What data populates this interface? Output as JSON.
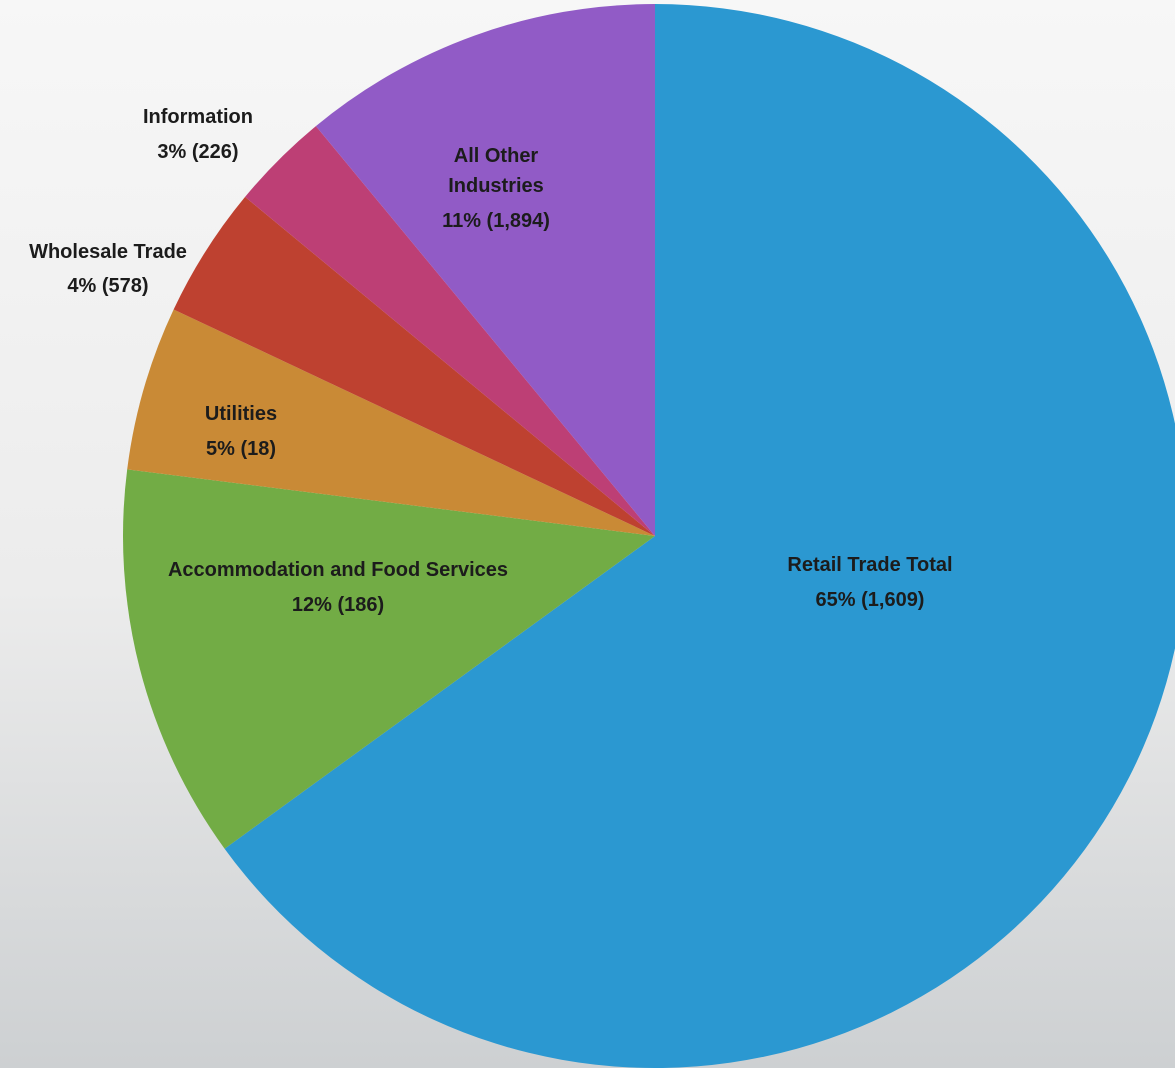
{
  "chart_data": {
    "type": "pie",
    "start_angle_deg": 0,
    "direction": "clockwise",
    "slices": [
      {
        "name": "Retail Trade Total",
        "percent": 65,
        "value": 1609,
        "percent_label": "65%",
        "value_label": "(1,609)",
        "color": "#2b98d1",
        "key": "retail-trade-total"
      },
      {
        "name": "Accommodation and Food Services",
        "percent": 12,
        "value": 186,
        "percent_label": "12%",
        "value_label": "(186)",
        "color": "#72ac45",
        "key": "accommodation-and-food-services"
      },
      {
        "name": "Utilities",
        "percent": 5,
        "value": 18,
        "percent_label": "5%",
        "value_label": "(18)",
        "color": "#c98a36",
        "key": "utilities"
      },
      {
        "name": "Wholesale Trade",
        "percent": 4,
        "value": 578,
        "percent_label": "4%",
        "value_label": "(578)",
        "color": "#be4130",
        "key": "wholesale-trade"
      },
      {
        "name": "Information",
        "percent": 3,
        "value": 226,
        "percent_label": "3%",
        "value_label": "(226)",
        "color": "#bd3f75",
        "key": "information"
      },
      {
        "name": "All Other Industries",
        "percent": 11,
        "value": 1894,
        "percent_label": "11%",
        "value_label": "(1,894)",
        "color": "#915bc6",
        "key": "all-other-industries"
      }
    ]
  }
}
